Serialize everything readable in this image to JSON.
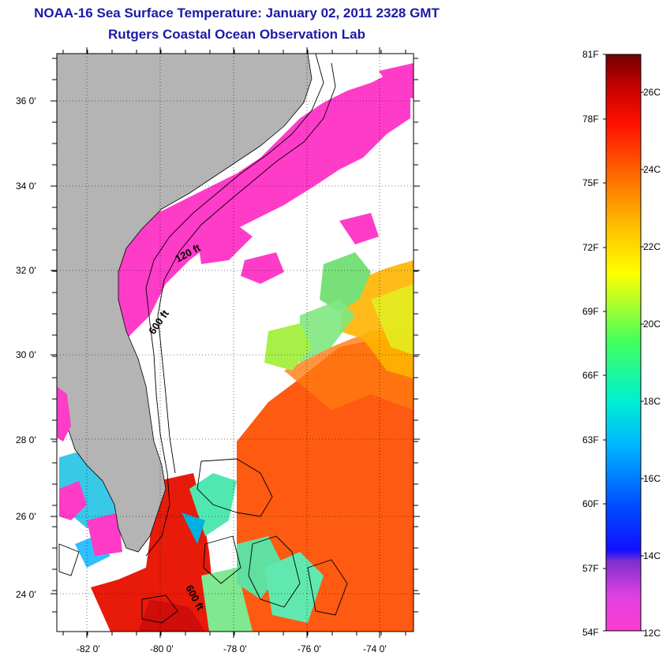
{
  "title": "NOAA-16 Sea Surface Temperature:  January 02, 2011 2328 GMT",
  "subtitle": "Rutgers Coastal Ocean Observation Lab",
  "map": {
    "lat_labels": [
      "36 0'",
      "34 0'",
      "32 0'",
      "30 0'",
      "28 0'",
      "26 0'",
      "24 0'"
    ],
    "lon_labels": [
      "-82 0'",
      "-80 0'",
      "-78 0'",
      "-76 0'",
      "-74 0'"
    ],
    "depth_labels": [
      "120 ft",
      "600 ft",
      "600 ft"
    ],
    "colors": {
      "land": "#b4b4b4",
      "cloud": "#ffffff",
      "cold_water": "#ff3cc8",
      "warm_water": "#ff5a0a"
    }
  },
  "colorbar": {
    "fahrenheit": [
      "81F",
      "78F",
      "75F",
      "72F",
      "69F",
      "66F",
      "63F",
      "60F",
      "57F",
      "54F"
    ],
    "celsius": [
      "26C",
      "24C",
      "22C",
      "20C",
      "18C",
      "16C",
      "14C",
      "12C"
    ]
  }
}
